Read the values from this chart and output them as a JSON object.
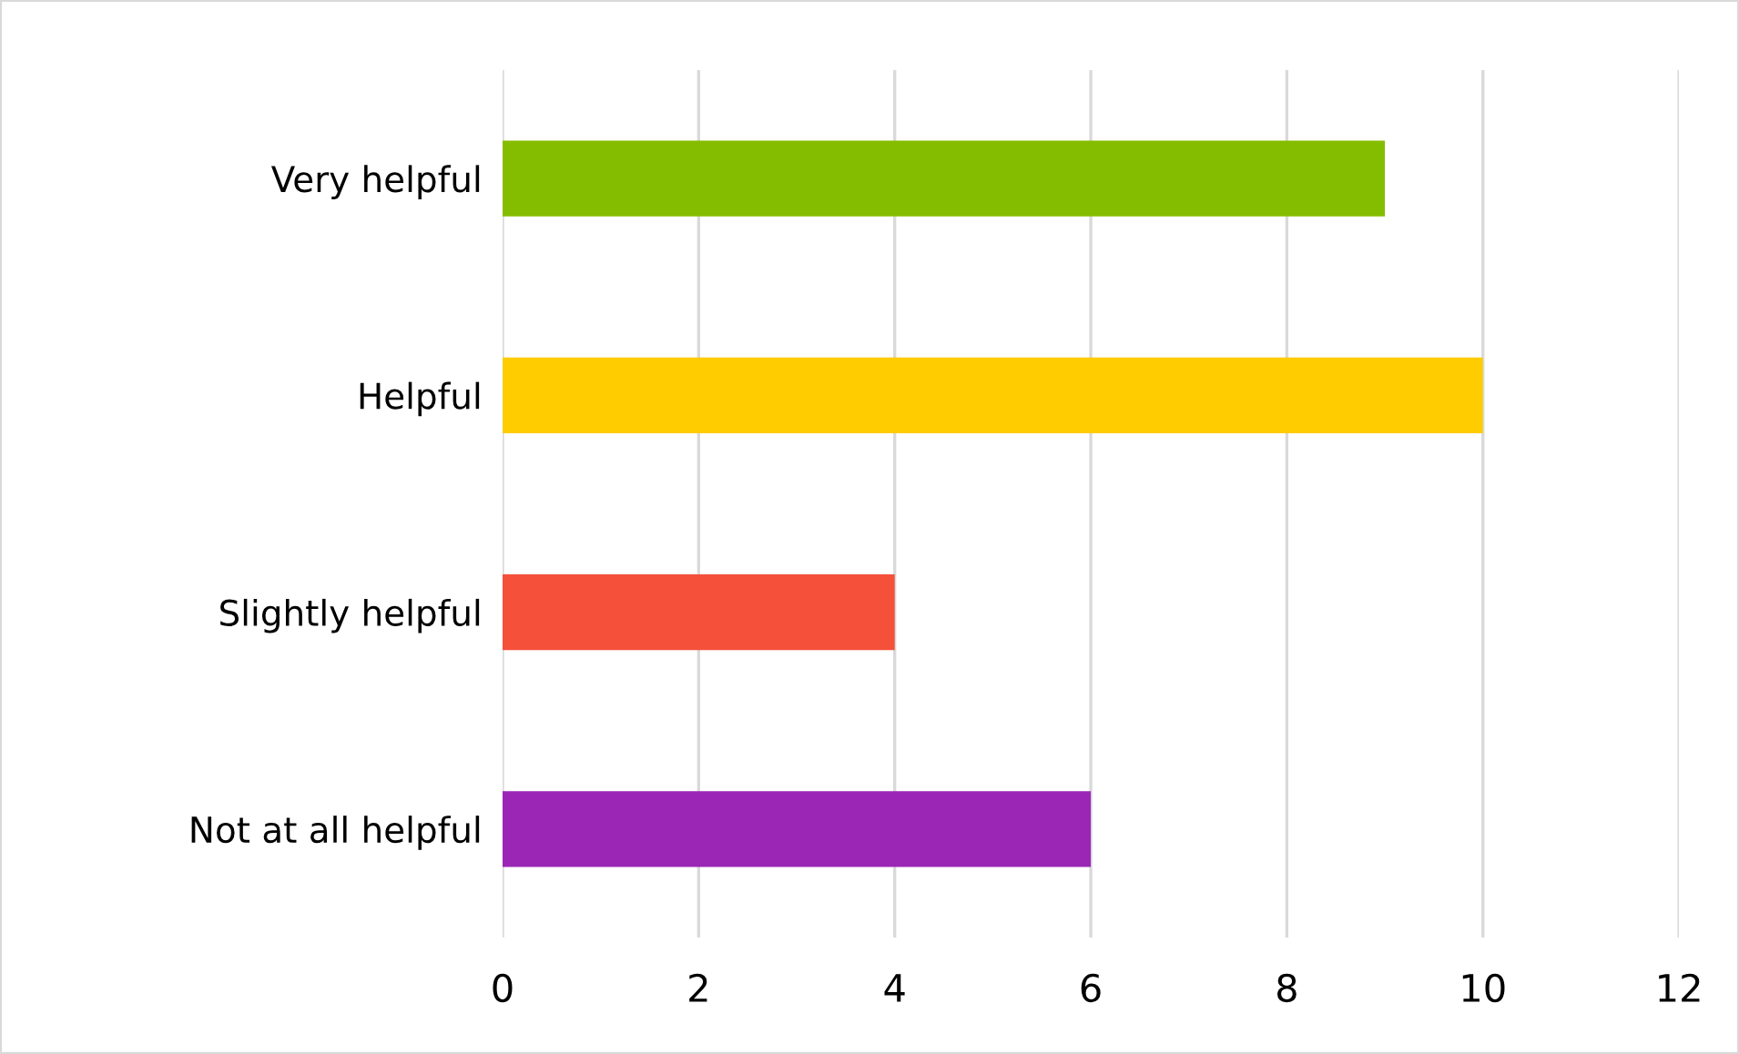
{
  "chart_data": {
    "type": "bar",
    "orientation": "horizontal",
    "categories": [
      "Very helpful",
      "Helpful",
      "Slightly helpful",
      "Not at all helpful"
    ],
    "values": [
      9,
      10,
      4,
      6
    ],
    "colors": [
      "#84bd00",
      "#ffcc00",
      "#f4503a",
      "#9b26b6"
    ],
    "xlim": [
      0,
      12
    ],
    "xticks": [
      0,
      2,
      4,
      6,
      8,
      10,
      12
    ],
    "grid": "x",
    "legend": false
  }
}
